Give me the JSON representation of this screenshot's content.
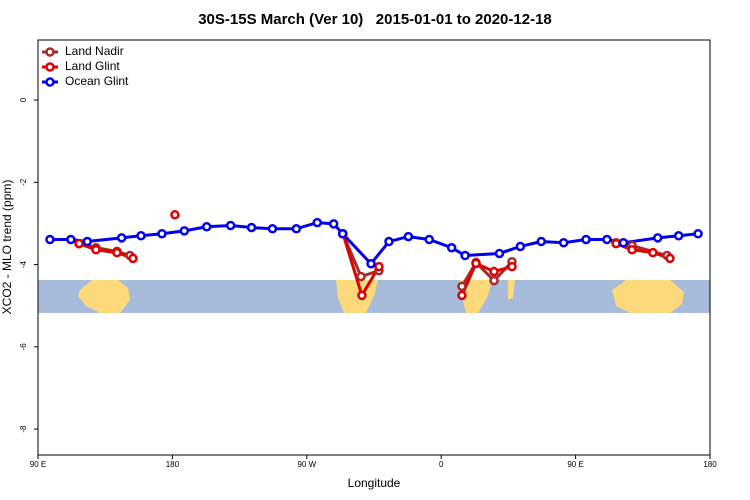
{
  "chart_data": {
    "type": "line",
    "title": "30S-15S March (Ver 10)   2015-01-01 to 2020-12-18",
    "x_label": "Longitude",
    "y_label": "XCO2 - MLO trend (ppm)",
    "xlim": [
      90,
      540
    ],
    "ylim": [
      1.46,
      -8.63
    ],
    "xticks": [
      {
        "value": 90,
        "label": "90 E"
      },
      {
        "value": 180,
        "label": "180"
      },
      {
        "value": 270,
        "label": "90 W"
      },
      {
        "value": 360,
        "label": "0"
      },
      {
        "value": 450,
        "label": "90 E"
      },
      {
        "value": 540,
        "label": "180"
      }
    ],
    "yticks": [
      0,
      -2,
      -4,
      -6,
      -8
    ],
    "grid": false,
    "legend": "top-left",
    "series": [
      {
        "name": "Land Nadir",
        "color": "#a52a2a",
        "x": [
          117.5,
          128.8,
          142.9,
          151.6,
          null,
          294.2,
          306.3,
          318.3,
          null,
          373.9,
          383.3,
          395.4,
          407.4,
          null,
          477.1,
          487.8,
          511.2
        ],
        "values": [
          -3.49,
          -3.59,
          -3.68,
          -3.78,
          null,
          -3.25,
          -4.29,
          -4.15,
          null,
          -4.53,
          -3.95,
          -4.39,
          -3.93,
          null,
          -3.47,
          -3.54,
          -3.78
        ]
      },
      {
        "name": "Land Glint",
        "color": "#e00000",
        "x": [
          117.5,
          128.8,
          142.9,
          153.6,
          null,
          181.7,
          null,
          294.2,
          306.9,
          318.3,
          null,
          373.9,
          383.3,
          395.4,
          407.4,
          null,
          477.1,
          487.8,
          501.8,
          513.2
        ],
        "values": [
          -3.49,
          -3.64,
          -3.71,
          -3.85,
          null,
          -2.79,
          null,
          -3.25,
          -4.75,
          -4.05,
          null,
          -4.75,
          -3.97,
          -4.17,
          -4.05,
          null,
          -3.49,
          -3.64,
          -3.71,
          -3.85
        ]
      },
      {
        "name": "Ocean Glint",
        "color": "#0000ee",
        "x": [
          98,
          112,
          123,
          146,
          159,
          173,
          188,
          203,
          219,
          233,
          247,
          263,
          277,
          288,
          294,
          313,
          325,
          338,
          352,
          367,
          376,
          399,
          413,
          427,
          442,
          457,
          471,
          482,
          505,
          519,
          532
        ],
        "values": [
          -3.39,
          -3.39,
          -3.44,
          -3.35,
          -3.3,
          -3.25,
          -3.18,
          -3.08,
          -3.05,
          -3.1,
          -3.13,
          -3.13,
          -2.98,
          -3.01,
          -3.25,
          -3.98,
          -3.44,
          -3.32,
          -3.39,
          -3.59,
          -3.78,
          -3.73,
          -3.56,
          -3.44,
          -3.47,
          -3.39,
          -3.39,
          -3.47,
          -3.35,
          -3.3,
          -3.25
        ]
      }
    ]
  }
}
